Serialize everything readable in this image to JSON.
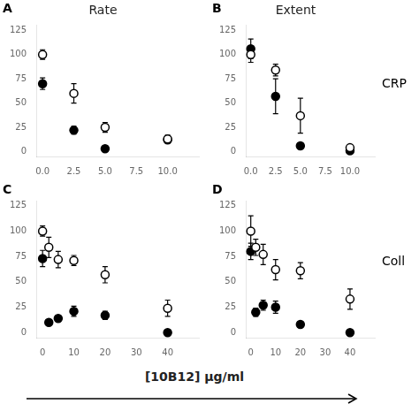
{
  "xlabel": "[10B12] μg/ml",
  "chart_data": [
    {
      "type": "scatter",
      "title": "Rate",
      "panel_label": "A",
      "x": [
        0.0,
        2.5,
        5.0,
        10.0
      ],
      "series": [
        {
          "marker": "circle_open",
          "color": "black",
          "values": [
            100,
            60,
            25,
            13
          ],
          "yerr": [
            5,
            10,
            5,
            4
          ]
        },
        {
          "marker": "circle",
          "color": "black",
          "values": [
            70,
            22,
            3,
            12
          ],
          "yerr": [
            6,
            4,
            2,
            3
          ]
        }
      ],
      "xlim": [
        -0.5,
        12.5
      ],
      "ylim": [
        -5,
        130
      ],
      "xticks": [
        {
          "value": 0.0,
          "label": "0.0"
        },
        {
          "value": 2.5,
          "label": "2.5"
        },
        {
          "value": 5.0,
          "label": "5.0"
        },
        {
          "value": 7.5,
          "label": "7.5"
        },
        {
          "value": 10.0,
          "label": "10.0"
        }
      ],
      "yticks": [
        0,
        25,
        50,
        75,
        100,
        125
      ],
      "grid": false
    },
    {
      "type": "scatter",
      "title": "Extent",
      "panel_label": "B",
      "side_label": "CRP",
      "x": [
        0.0,
        2.5,
        5.0,
        10.0
      ],
      "series": [
        {
          "marker": "circle_open",
          "color": "black",
          "values": [
            100,
            84,
            37,
            4
          ],
          "yerr": [
            8,
            6,
            18,
            2
          ]
        },
        {
          "marker": "circle",
          "color": "black",
          "values": [
            106,
            57,
            6,
            1
          ],
          "yerr": [
            10,
            18,
            3,
            1
          ]
        }
      ],
      "xlim": [
        -0.5,
        12.5
      ],
      "ylim": [
        -5,
        130
      ],
      "xticks": [
        {
          "value": 0.0,
          "label": "0.0"
        },
        {
          "value": 2.5,
          "label": "2.5"
        },
        {
          "value": 5.0,
          "label": "5.0"
        },
        {
          "value": 7.5,
          "label": "7.5"
        },
        {
          "value": 10.0,
          "label": "10.0"
        }
      ],
      "yticks": [
        0,
        25,
        50,
        75,
        100,
        125
      ],
      "grid": false
    },
    {
      "type": "scatter",
      "panel_label": "C",
      "x": [
        0,
        2,
        5,
        10,
        20,
        40
      ],
      "series": [
        {
          "marker": "circle_open",
          "color": "black",
          "values": [
            100,
            84,
            72,
            71,
            57,
            24
          ],
          "yerr": [
            5,
            10,
            8,
            5,
            8,
            8
          ]
        },
        {
          "marker": "circle",
          "color": "black",
          "values": [
            73,
            10,
            14,
            21,
            17,
            0
          ],
          "yerr": [
            8,
            2,
            3,
            5,
            4,
            0
          ]
        }
      ],
      "xlim": [
        -2,
        50
      ],
      "ylim": [
        -5,
        130
      ],
      "xticks": [
        0,
        10,
        20,
        30,
        40
      ],
      "yticks": [
        0,
        25,
        50,
        75,
        100,
        125
      ],
      "grid": false
    },
    {
      "type": "scatter",
      "panel_label": "D",
      "side_label": "Coll",
      "x": [
        0,
        2,
        5,
        10,
        20,
        40
      ],
      "series": [
        {
          "marker": "circle_open",
          "color": "black",
          "values": [
            100,
            84,
            77,
            62,
            61,
            33
          ],
          "yerr": [
            15,
            8,
            10,
            10,
            8,
            10
          ]
        },
        {
          "marker": "circle",
          "color": "black",
          "values": [
            80,
            20,
            27,
            25,
            8,
            0
          ],
          "yerr": [
            8,
            4,
            5,
            6,
            3,
            0
          ]
        }
      ],
      "xlim": [
        -2,
        50
      ],
      "ylim": [
        -5,
        130
      ],
      "xticks": [
        0,
        10,
        20,
        30,
        40
      ],
      "yticks": [
        0,
        25,
        50,
        75,
        100,
        125
      ],
      "grid": false
    }
  ]
}
